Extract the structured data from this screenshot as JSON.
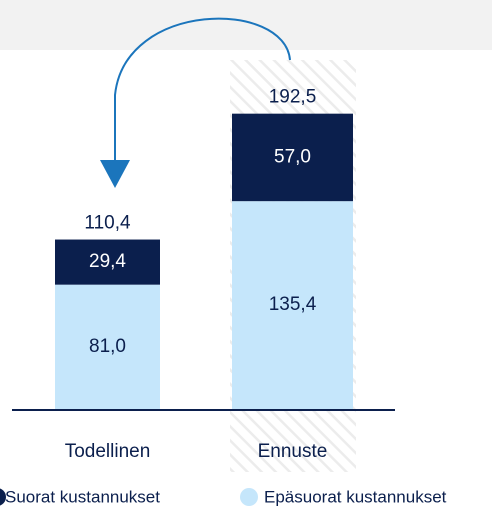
{
  "chart_data": {
    "type": "bar",
    "stacked": true,
    "categories": [
      "Todellinen",
      "Ennuste"
    ],
    "series": [
      {
        "name": "Epäsuorat kustannukset",
        "color": "#c5e6fb",
        "values": [
          81.0,
          135.4
        ],
        "value_labels": [
          "81,0",
          "135,4"
        ]
      },
      {
        "name": "Suorat kustannukset",
        "color": "#0b1f4d",
        "values": [
          29.4,
          57.0
        ],
        "value_labels": [
          "29,4",
          "57,0"
        ]
      }
    ],
    "totals": [
      110.4,
      192.5
    ],
    "total_labels": [
      "110,4",
      "192,5"
    ]
  }
}
